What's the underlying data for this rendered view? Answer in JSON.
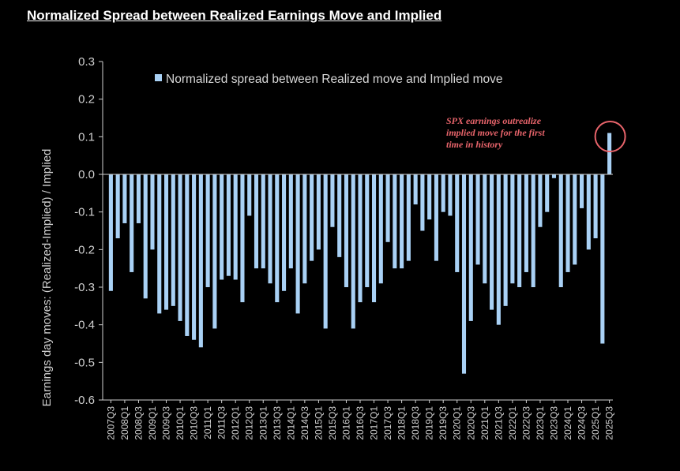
{
  "chart_data": {
    "type": "bar",
    "title": "Normalized Spread between Realized Earnings Move and Implied",
    "ylabel": "Earnings day moves: (Realized-Implied) / Implied",
    "xlabel": "",
    "ylim": [
      -0.6,
      0.3
    ],
    "yticks": [
      "0.3",
      "0.2",
      "0.1",
      "0.0",
      "-0.1",
      "-0.2",
      "-0.3",
      "-0.4",
      "-0.5",
      "-0.6"
    ],
    "ytick_values": [
      0.3,
      0.2,
      0.1,
      0.0,
      -0.1,
      -0.2,
      -0.3,
      -0.4,
      -0.5,
      -0.6
    ],
    "xtick_labels": [
      "2007Q3",
      "2008Q1",
      "2008Q3",
      "2009Q1",
      "2009Q3",
      "2010Q1",
      "2010Q3",
      "2011Q1",
      "2011Q3",
      "2012Q1",
      "2012Q3",
      "2013Q1",
      "2013Q3",
      "2014Q1",
      "2014Q3",
      "2015Q1",
      "2015Q3",
      "2016Q1",
      "2016Q3",
      "2017Q1",
      "2017Q3",
      "2018Q1",
      "2018Q3",
      "2019Q1",
      "2019Q3",
      "2020Q1",
      "2020Q3",
      "2021Q1",
      "2021Q3",
      "2022Q1",
      "2022Q3",
      "2023Q1",
      "2023Q3",
      "2024Q1",
      "2024Q3",
      "2025Q1",
      "2025Q3"
    ],
    "legend": "Normalized spread between Realized move and Implied move",
    "legend_position": "top",
    "grid": false,
    "bar_color": "#a9d1f5",
    "annotation": {
      "lines": [
        "SPX earnings outrealize",
        "implied move for the first",
        "time in history"
      ],
      "color": "#e8646b"
    },
    "values": [
      -0.31,
      -0.17,
      -0.13,
      -0.26,
      -0.13,
      -0.33,
      -0.2,
      -0.37,
      -0.36,
      -0.35,
      -0.39,
      -0.43,
      -0.44,
      -0.46,
      -0.3,
      -0.41,
      -0.28,
      -0.27,
      -0.28,
      -0.34,
      -0.11,
      -0.25,
      -0.25,
      -0.29,
      -0.34,
      -0.31,
      -0.25,
      -0.37,
      -0.29,
      -0.23,
      -0.2,
      -0.41,
      -0.14,
      -0.22,
      -0.3,
      -0.41,
      -0.34,
      -0.3,
      -0.34,
      -0.29,
      -0.18,
      -0.25,
      -0.25,
      -0.23,
      -0.08,
      -0.15,
      -0.12,
      -0.23,
      -0.1,
      -0.11,
      -0.26,
      -0.53,
      -0.39,
      -0.24,
      -0.29,
      -0.36,
      -0.4,
      -0.35,
      -0.29,
      -0.3,
      -0.26,
      -0.3,
      -0.14,
      -0.1,
      -0.01,
      -0.3,
      -0.26,
      -0.24,
      -0.09,
      -0.2,
      -0.17,
      -0.45,
      0.11
    ]
  }
}
